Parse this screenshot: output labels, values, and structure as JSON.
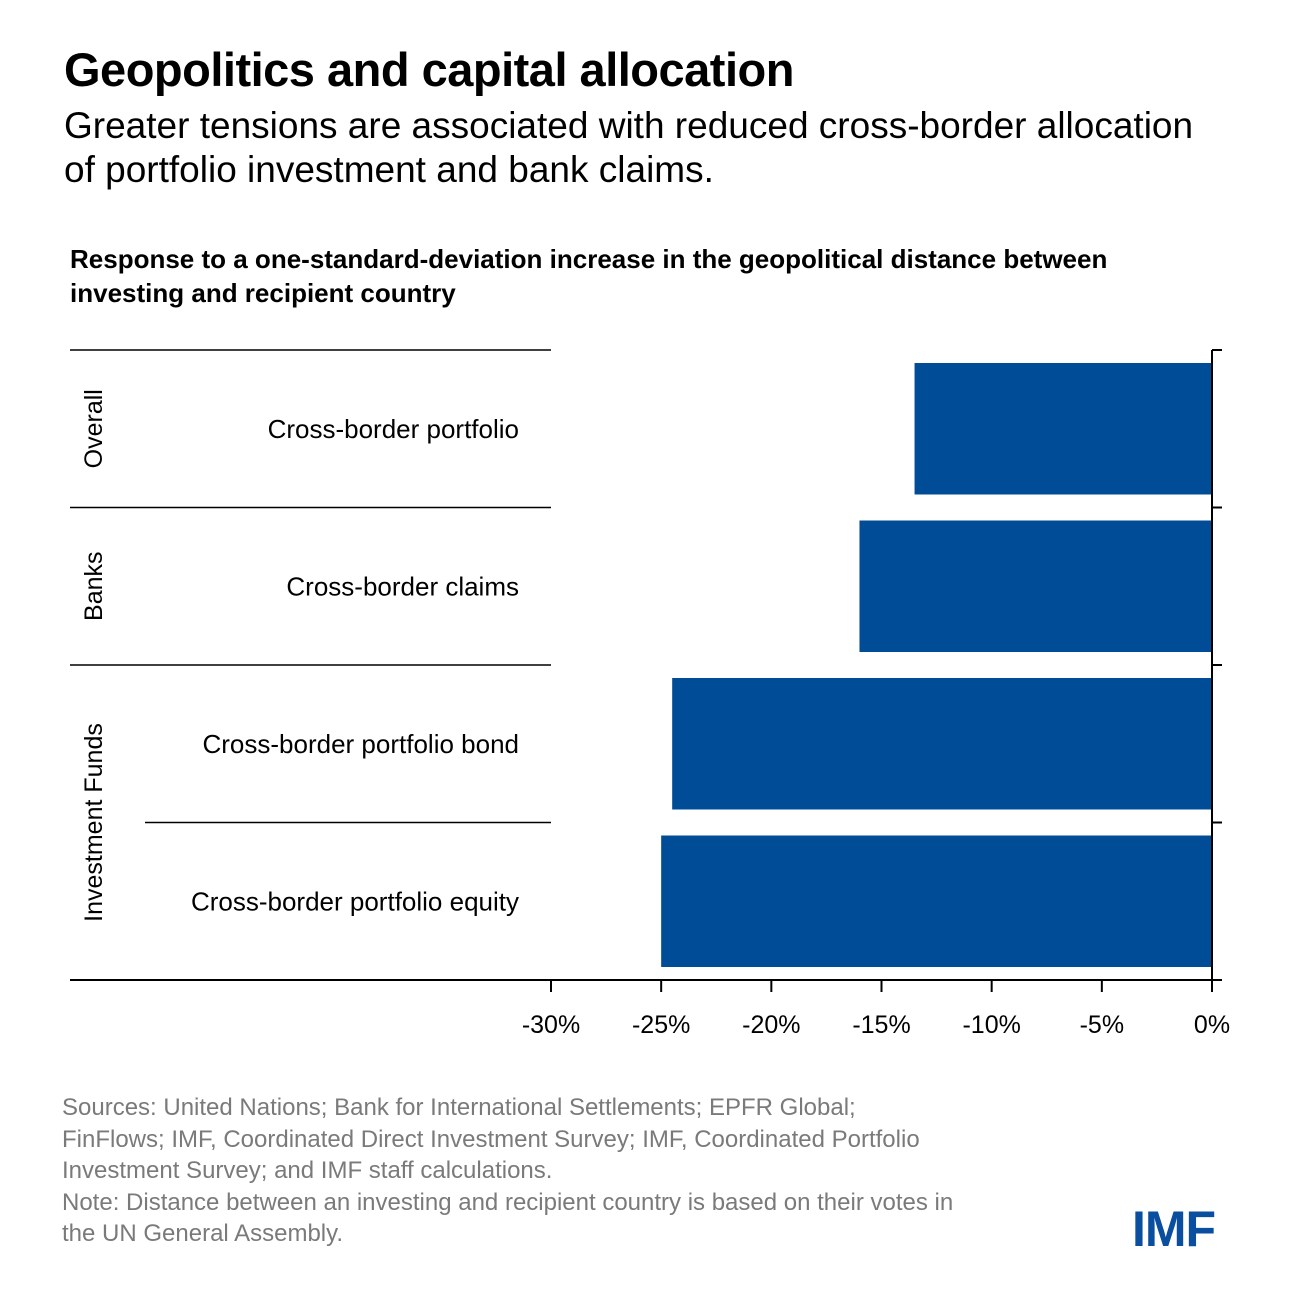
{
  "header": {
    "title": "Geopolitics and capital allocation",
    "subtitle": "Greater tensions are associated with reduced cross-border allocation of portfolio investment and bank claims."
  },
  "chart_data": {
    "type": "bar",
    "orientation": "horizontal",
    "title": "Response to a one-standard-deviation increase in the geopolitical distance between investing and recipient country",
    "groups": [
      {
        "name": "Overall",
        "categories": [
          "Cross-border portfolio"
        ]
      },
      {
        "name": "Banks",
        "categories": [
          "Cross-border claims"
        ]
      },
      {
        "name": "Investment Funds",
        "categories": [
          "Cross-border portfolio bond",
          "Cross-border portfolio equity"
        ]
      }
    ],
    "categories": [
      "Cross-border portfolio",
      "Cross-border claims",
      "Cross-border portfolio bond",
      "Cross-border portfolio equity"
    ],
    "values": [
      -13.5,
      -16.0,
      -24.5,
      -25.0
    ],
    "xlim": [
      -30,
      0
    ],
    "xticks": [
      -30,
      -25,
      -20,
      -15,
      -10,
      -5,
      0
    ],
    "xtick_labels": [
      "-30%",
      "-25%",
      "-20%",
      "-15%",
      "-10%",
      "-5%",
      "0%"
    ],
    "xlabel": "",
    "ylabel": "",
    "bar_color": "#004c97",
    "grid": false
  },
  "footer": {
    "sources": "Sources: United Nations; Bank for International Settlements; EPFR Global; FinFlows; IMF, Coordinated Direct Investment Survey; IMF, Coordinated Portfolio Investment Survey; and IMF staff calculations.",
    "note": "Note: Distance between an investing and recipient country is based on their votes in the UN General Assembly.",
    "logo": "IMF"
  }
}
